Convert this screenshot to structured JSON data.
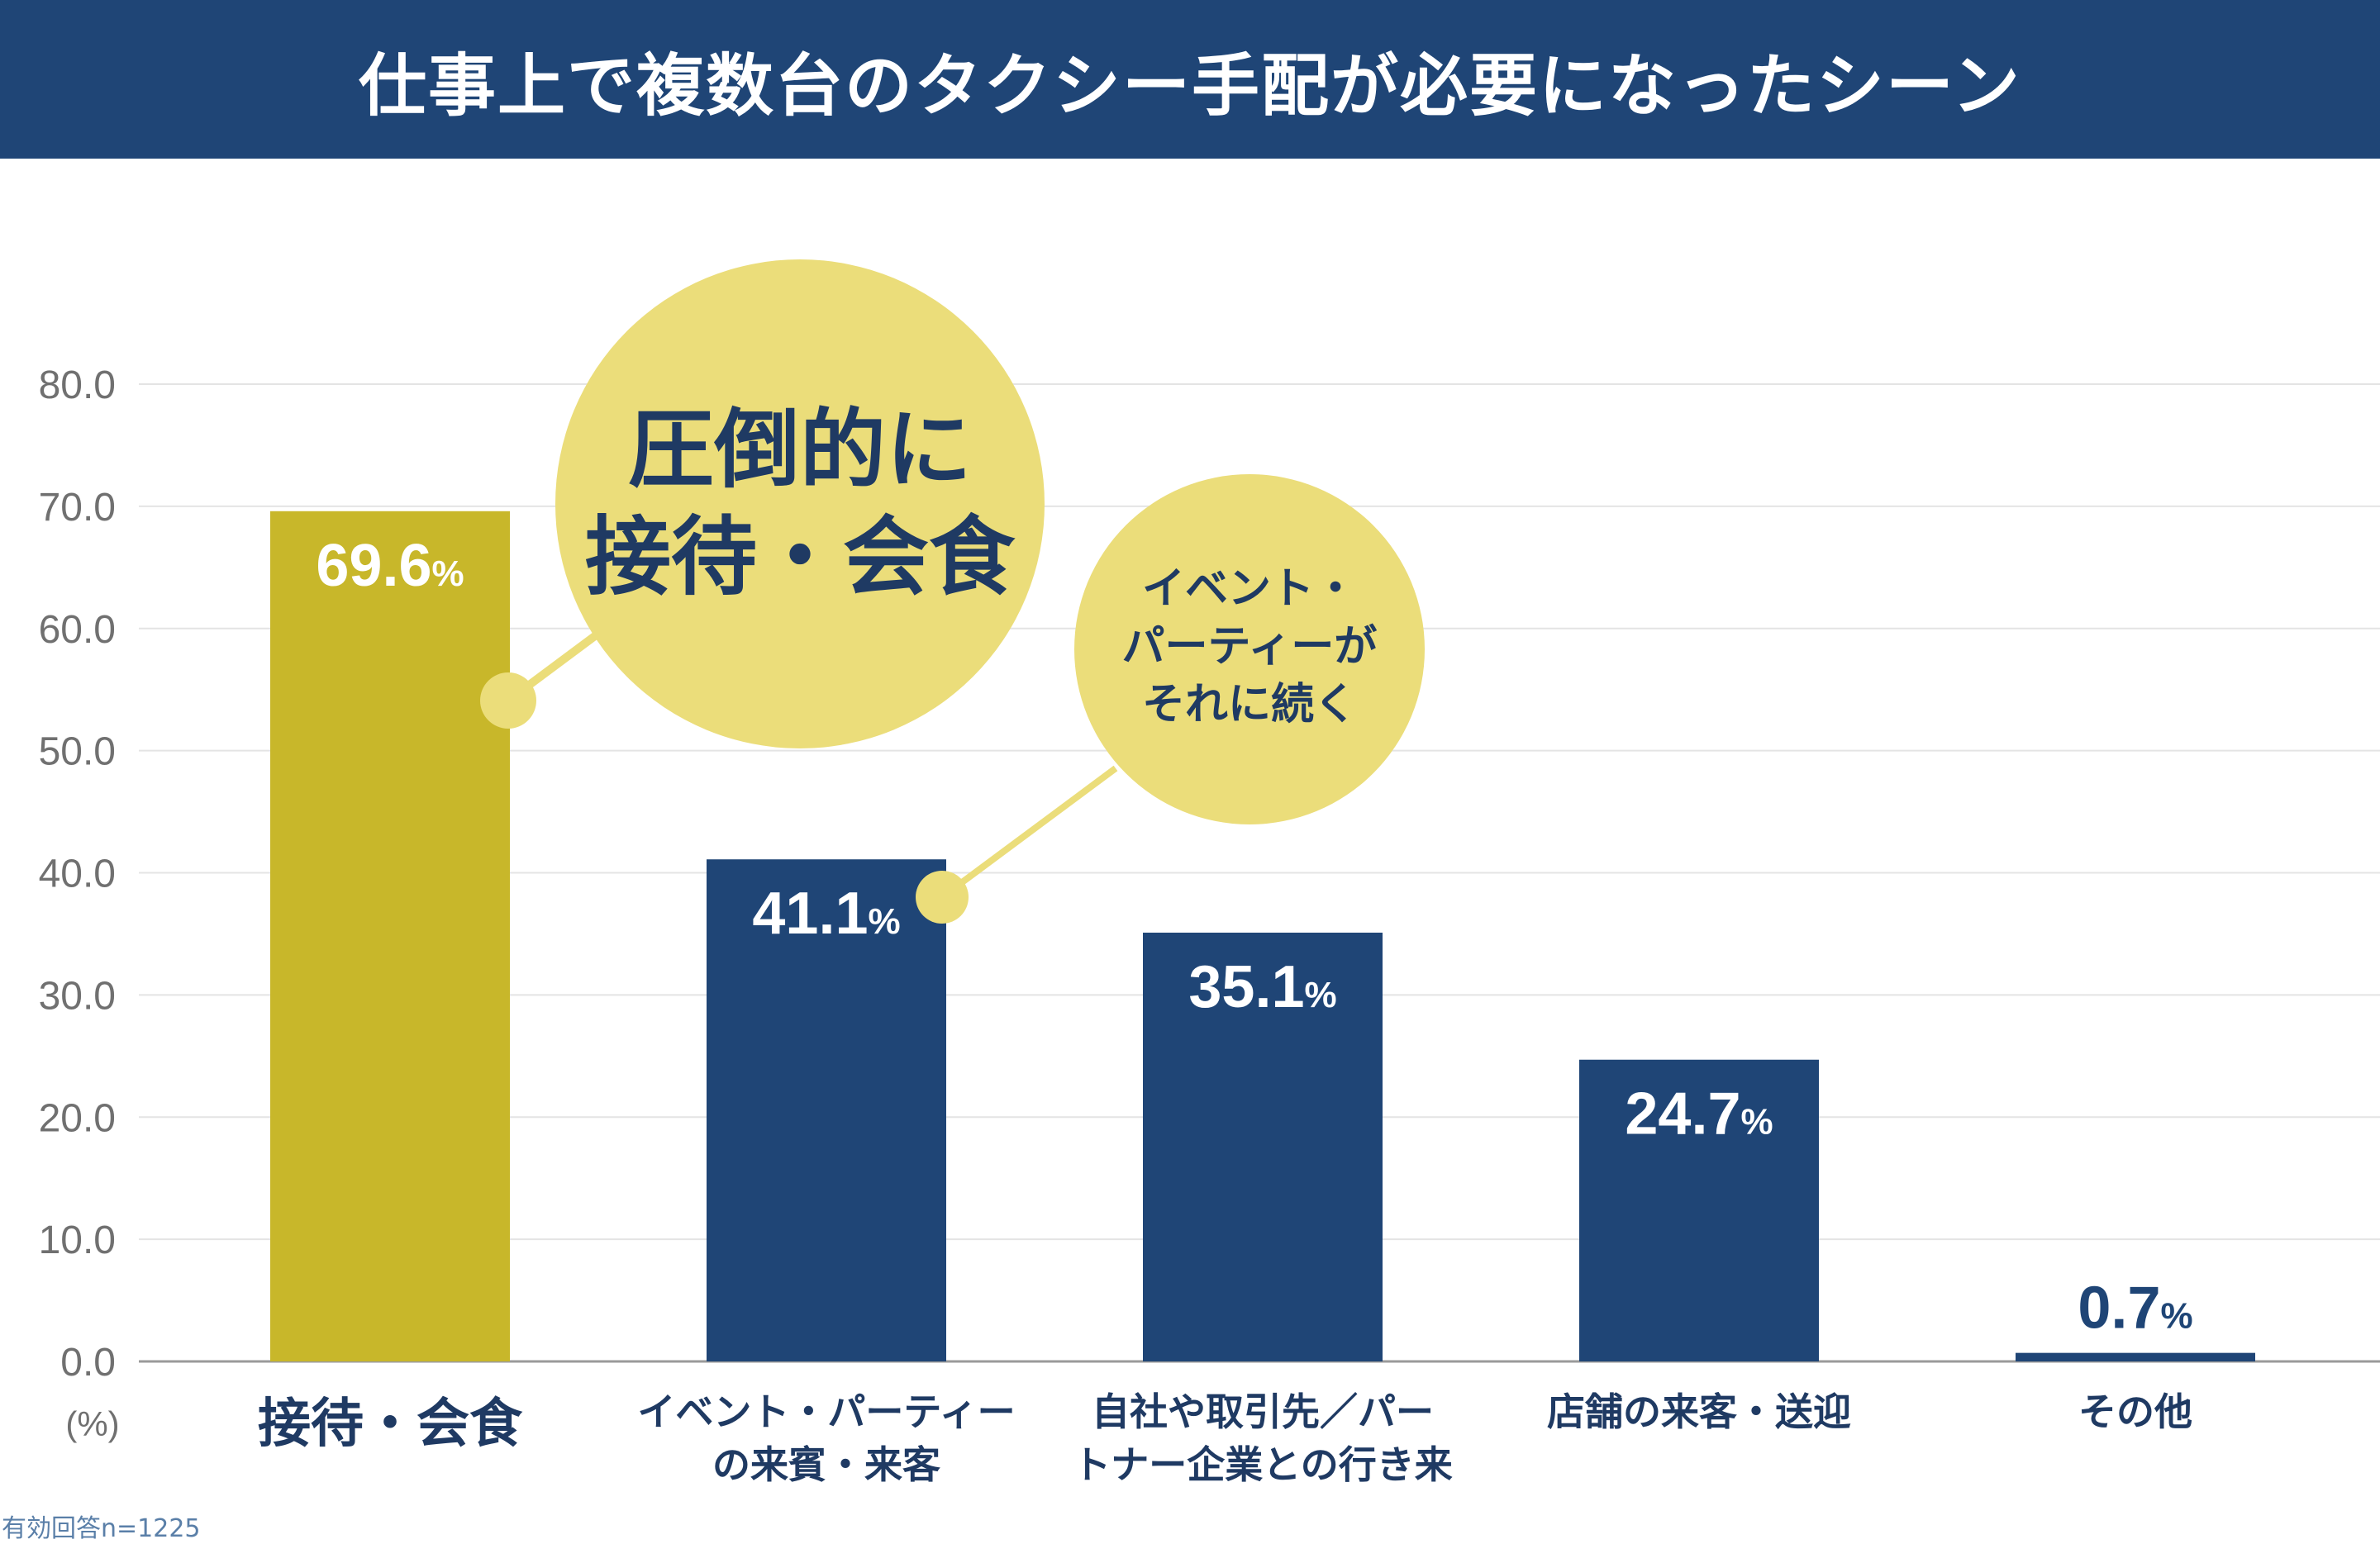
{
  "header": {
    "title": "仕事上で複数台のタクシー手配が必要になったシーン"
  },
  "chart_data": {
    "type": "bar",
    "categories": [
      [
        "接待・会食"
      ],
      [
        "イベント・パーティー",
        "の来賓・来客"
      ],
      [
        "自社や取引先／パー",
        "トナー企業との行き来"
      ],
      [
        "店舗の来客・送迎"
      ],
      [
        "その他"
      ]
    ],
    "values": [
      69.6,
      41.1,
      35.1,
      24.7,
      0.7
    ],
    "value_labels": [
      "69.6",
      "41.1",
      "35.1",
      "24.7",
      "0.7"
    ],
    "value_suffix": "%",
    "ylim": [
      0,
      80
    ],
    "yticks": [
      "0.0",
      "10.0",
      "20.0",
      "30.0",
      "40.0",
      "50.0",
      "60.0",
      "70.0",
      "80.0"
    ],
    "ylabel": "(%)",
    "grid": true,
    "colors": {
      "highlight": "#c8b72a",
      "bar": "#1f4576",
      "bubble": "#ebdd7a",
      "axis_text": "#707070"
    }
  },
  "bubbles": {
    "big": [
      "圧倒的に",
      "接待・会食"
    ],
    "small": [
      "イベント・",
      "パーティーが",
      "それに続く"
    ]
  },
  "footnote": "有効回答n=1225"
}
